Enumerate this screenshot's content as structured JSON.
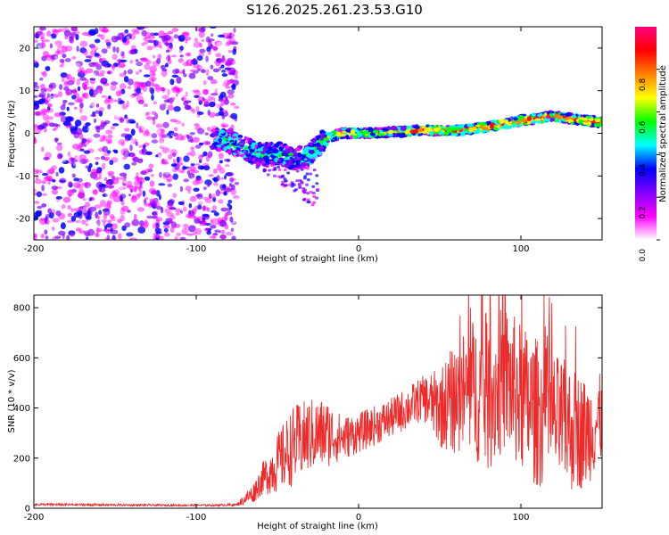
{
  "figure_title": "S126.2025.261.23.53.G10",
  "chart_data": [
    {
      "type": "heatmap",
      "title": "S126.2025.261.23.53.G10",
      "xlabel": "Height of straight line (km)",
      "ylabel": "Frequency (Hz)",
      "xlim": [
        -200,
        150
      ],
      "ylim": [
        -25,
        25
      ],
      "xticks": [
        "-200",
        "-100",
        "0",
        "100"
      ],
      "yticks": [
        "-20",
        "-10",
        "0",
        "10",
        "20"
      ],
      "colorbar": {
        "label": "Normalized spectral amplitude",
        "range": [
          0,
          1
        ],
        "ticks": [
          "0.0",
          "0.2",
          "0.4",
          "0.6",
          "0.8"
        ],
        "colors": [
          "#ffffff",
          "#ff00ff",
          "#8000ff",
          "#0000ff",
          "#00ffff",
          "#00ff00",
          "#ffff00",
          "#ff8000",
          "#ff0000",
          "#ff0080"
        ]
      },
      "ridge": {
        "x": [
          -90,
          -80,
          -70,
          -60,
          -50,
          -40,
          -30,
          -20,
          -10,
          0,
          20,
          40,
          60,
          80,
          100,
          120,
          140,
          150
        ],
        "y": [
          -1,
          -2,
          -3.5,
          -5,
          -4.5,
          -6,
          -5,
          -1,
          0,
          0,
          0.2,
          0.8,
          0.6,
          1.5,
          3,
          4,
          3,
          2.5
        ]
      },
      "noise_region_x": [
        -200,
        -75
      ]
    },
    {
      "type": "line",
      "xlabel": "Height of straight line (km)",
      "ylabel": "SNR (10 * v/v)",
      "xlim": [
        -200,
        150
      ],
      "ylim": [
        0,
        850
      ],
      "xticks": [
        "-200",
        "-100",
        "0",
        "100"
      ],
      "yticks": [
        "0",
        "200",
        "400",
        "600",
        "800"
      ],
      "series": [
        {
          "name": "SNR",
          "color": "#ee2b2b",
          "envelope_x": [
            -200,
            -120,
            -90,
            -75,
            -65,
            -60,
            -50,
            -40,
            -30,
            -20,
            -10,
            0,
            20,
            40,
            50,
            60,
            70,
            80,
            90,
            100,
            110,
            120,
            130,
            140,
            150
          ],
          "envelope_y": [
            15,
            12,
            12,
            14,
            60,
            110,
            180,
            250,
            290,
            300,
            280,
            300,
            360,
            440,
            400,
            440,
            480,
            440,
            520,
            440,
            380,
            360,
            320,
            300,
            360
          ],
          "amplitude": [
            5,
            4,
            4,
            5,
            40,
            60,
            120,
            160,
            150,
            140,
            90,
            80,
            80,
            90,
            160,
            230,
            280,
            300,
            300,
            300,
            300,
            260,
            260,
            220,
            180
          ]
        }
      ]
    }
  ]
}
